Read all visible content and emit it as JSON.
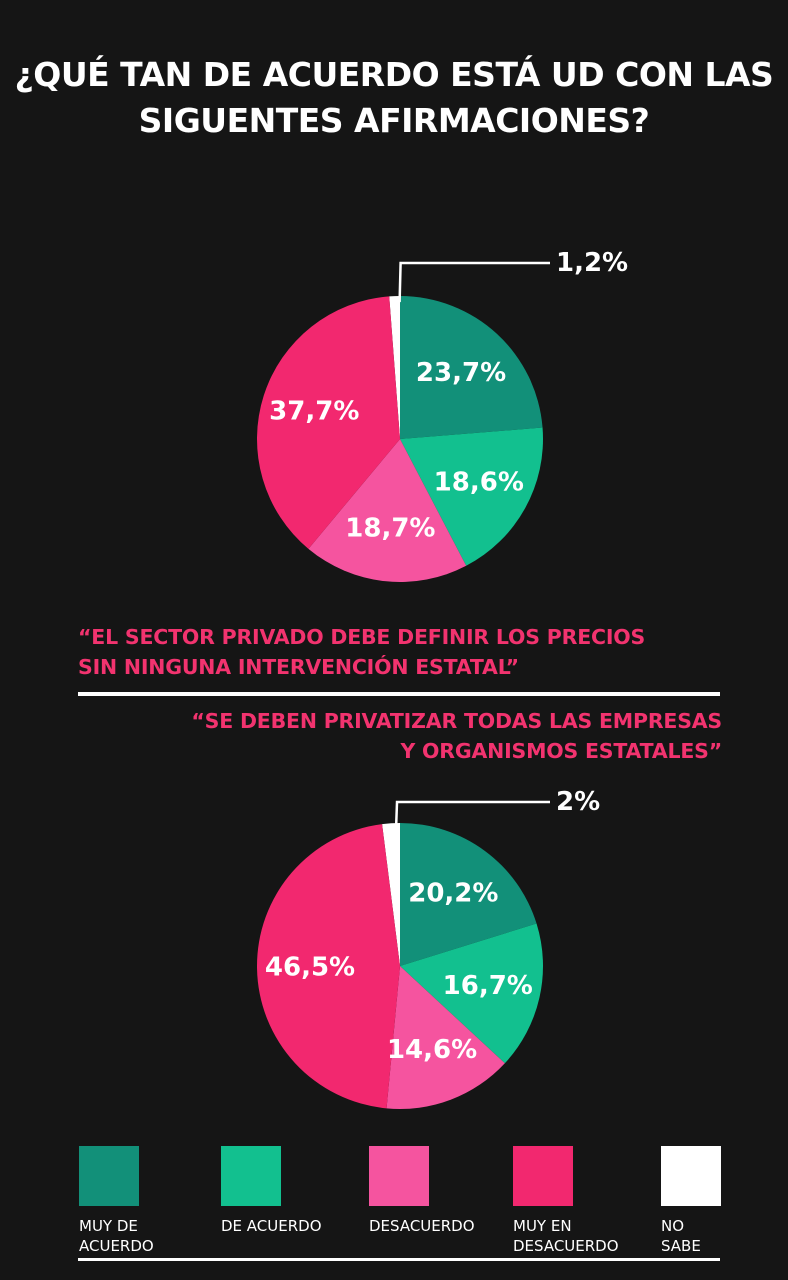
{
  "title": {
    "line1": "¿QUÉ TAN DE ACUERDO ESTÁ UD CON LAS",
    "line2": "SIGUENTES AFIRMACIONES?"
  },
  "statements": {
    "s1_line1": "“EL SECTOR PRIVADO DEBE DEFINIR LOS PRECIOS",
    "s1_line2": "SIN NINGUNA INTERVENCIÓN ESTATAL”",
    "s2_line1": "“SE DEBEN PRIVATIZAR TODAS LAS EMPRESAS",
    "s2_line2": "Y ORGANISMOS ESTATALES”"
  },
  "colors": {
    "muy_de_acuerdo": "#129079",
    "de_acuerdo": "#12c08f",
    "desacuerdo": "#f5549f",
    "muy_en_desacuerdo": "#f2286f",
    "no_sabe": "#ffffff",
    "statement_text": "#f2336f",
    "background": "#151515"
  },
  "legend": [
    {
      "line1": "MUY DE",
      "line2": "ACUERDO",
      "color": "#129079"
    },
    {
      "line1": "DE ACUERDO",
      "line2": "",
      "color": "#12c08f"
    },
    {
      "line1": "DESACUERDO",
      "line2": "",
      "color": "#f5549f"
    },
    {
      "line1": "MUY EN",
      "line2": "DESACUERDO",
      "color": "#f2286f"
    },
    {
      "line1": "NO",
      "line2": "SABE",
      "color": "#ffffff"
    }
  ],
  "chart_data": [
    {
      "type": "pie",
      "title": "“EL SECTOR PRIVADO DEBE DEFINIR LOS PRECIOS SIN NINGUNA INTERVENCIÓN ESTATAL”",
      "categories": [
        "Muy de acuerdo",
        "De acuerdo",
        "Desacuerdo",
        "Muy en desacuerdo",
        "No sabe"
      ],
      "values": [
        23.7,
        18.6,
        18.7,
        37.7,
        1.2
      ],
      "labels": [
        "23,7%",
        "18,6%",
        "18,7%",
        "37,7%",
        "1,2%"
      ]
    },
    {
      "type": "pie",
      "title": "“SE DEBEN PRIVATIZAR TODAS LAS EMPRESAS Y ORGANISMOS ESTATALES”",
      "categories": [
        "Muy de acuerdo",
        "De acuerdo",
        "Desacuerdo",
        "Muy en desacuerdo",
        "No sabe"
      ],
      "values": [
        20.2,
        16.7,
        14.6,
        46.5,
        2
      ],
      "labels": [
        "20,2%",
        "16,7%",
        "14,6%",
        "46,5%",
        "2%"
      ]
    }
  ]
}
